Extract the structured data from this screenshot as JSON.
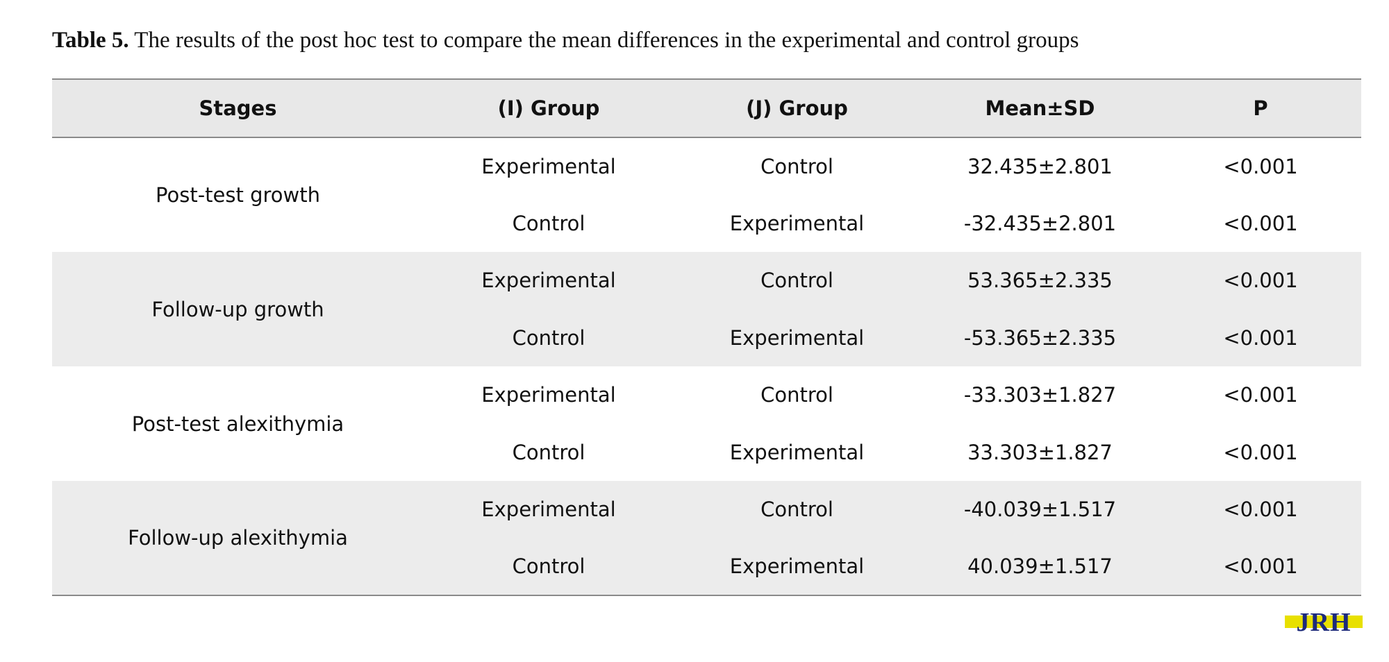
{
  "caption": {
    "label": "Table 5.",
    "text": " The results of the post hoc test to compare the mean differences in the experimental and control groups"
  },
  "table": {
    "headers": {
      "stages": "Stages",
      "i_group": "(I) Group",
      "j_group": "(J) Group",
      "mean_sd": "Mean±SD",
      "p": "P"
    },
    "stages": [
      {
        "name": "Post-test growth",
        "rows": [
          {
            "i": "Experimental",
            "j": "Control",
            "mean_sd": "32.435±2.801",
            "p": "<0.001"
          },
          {
            "i": "Control",
            "j": "Experimental",
            "mean_sd": "-32.435±2.801",
            "p": "<0.001"
          }
        ]
      },
      {
        "name": "Follow-up growth",
        "rows": [
          {
            "i": "Experimental",
            "j": "Control",
            "mean_sd": "53.365±2.335",
            "p": "<0.001"
          },
          {
            "i": "Control",
            "j": "Experimental",
            "mean_sd": "-53.365±2.335",
            "p": "<0.001"
          }
        ]
      },
      {
        "name": "Post-test alexithymia",
        "rows": [
          {
            "i": "Experimental",
            "j": "Control",
            "mean_sd": "-33.303±1.827",
            "p": "<0.001"
          },
          {
            "i": "Control",
            "j": "Experimental",
            "mean_sd": "33.303±1.827",
            "p": "<0.001"
          }
        ]
      },
      {
        "name": "Follow-up alexithymia",
        "rows": [
          {
            "i": "Experimental",
            "j": "Control",
            "mean_sd": "-40.039±1.517",
            "p": "<0.001"
          },
          {
            "i": "Control",
            "j": "Experimental",
            "mean_sd": "40.039±1.517",
            "p": "<0.001"
          }
        ]
      }
    ]
  },
  "logo": {
    "text": "JRH",
    "colors": {
      "primary": "#1d2a7a",
      "accent": "#e8e000"
    }
  },
  "colors": {
    "header_bg": "#e8e8e8",
    "shaded_row_bg": "#ececec",
    "rule": "#8a8a8a",
    "text": "#111111"
  }
}
